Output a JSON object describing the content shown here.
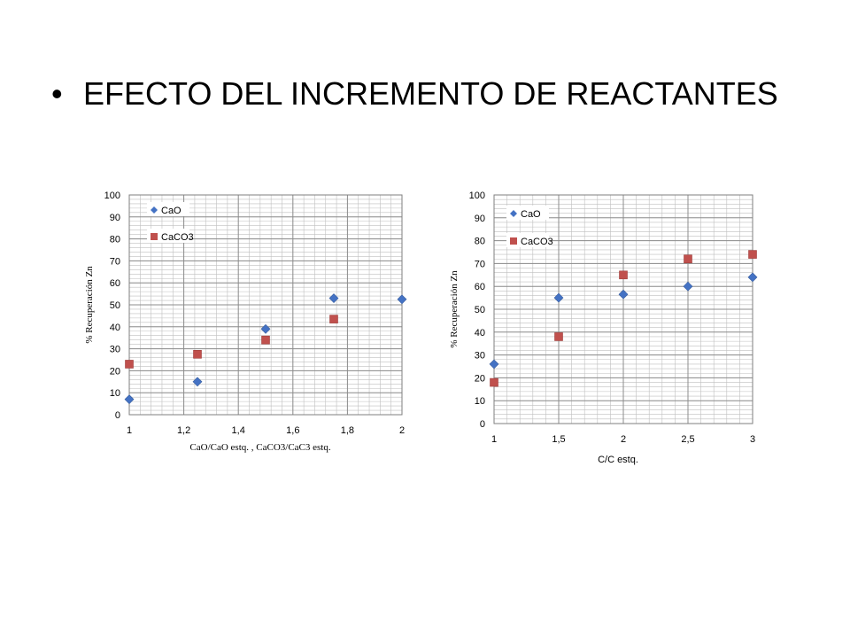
{
  "slide": {
    "bullet": "•",
    "title": "EFECTO DEL INCREMENTO DE REACTANTES"
  },
  "colors": {
    "CaO": "#4472C4",
    "CaCO3": "#C0504D",
    "grid": "#8c8c8c"
  },
  "chart_data": [
    {
      "type": "scatter",
      "xlabel": "CaO/CaO estq. ,  CaCO3/CaC3 estq.",
      "ylabel": "% Recuperación Zn",
      "xlim": [
        1,
        2
      ],
      "ylim": [
        0,
        100
      ],
      "xticks": [
        "1",
        "1,2",
        "1,4",
        "1,6",
        "1,8",
        "2"
      ],
      "yticks": [
        "0",
        "10",
        "20",
        "30",
        "40",
        "50",
        "60",
        "70",
        "80",
        "90",
        "100"
      ],
      "grid": true,
      "legend_position": "top-left",
      "series": [
        {
          "name": "CaO",
          "marker": "diamond",
          "x": [
            1,
            1.25,
            1.5,
            1.75,
            2
          ],
          "y": [
            7,
            15,
            39,
            53,
            52.5
          ]
        },
        {
          "name": "CaCO3",
          "marker": "square",
          "x": [
            1,
            1.25,
            1.5,
            1.75
          ],
          "y": [
            23,
            27.5,
            34,
            43.5
          ]
        }
      ]
    },
    {
      "type": "scatter",
      "xlabel": "C/C estq.",
      "ylabel": "% Recuperación Zn",
      "xlim": [
        1,
        3
      ],
      "ylim": [
        0,
        100
      ],
      "xticks": [
        "1",
        "1,5",
        "2",
        "2,5",
        "3"
      ],
      "yticks": [
        "0",
        "10",
        "20",
        "30",
        "40",
        "50",
        "60",
        "70",
        "80",
        "90",
        "100"
      ],
      "grid": true,
      "legend_position": "top-left",
      "series": [
        {
          "name": "CaO",
          "marker": "diamond",
          "x": [
            1,
            1.5,
            2,
            2.5,
            3
          ],
          "y": [
            26,
            55,
            56.5,
            60,
            64
          ]
        },
        {
          "name": "CaCO3",
          "marker": "square",
          "x": [
            1,
            1.5,
            2,
            2.5,
            3
          ],
          "y": [
            18,
            38,
            65,
            72,
            74
          ]
        }
      ]
    }
  ]
}
